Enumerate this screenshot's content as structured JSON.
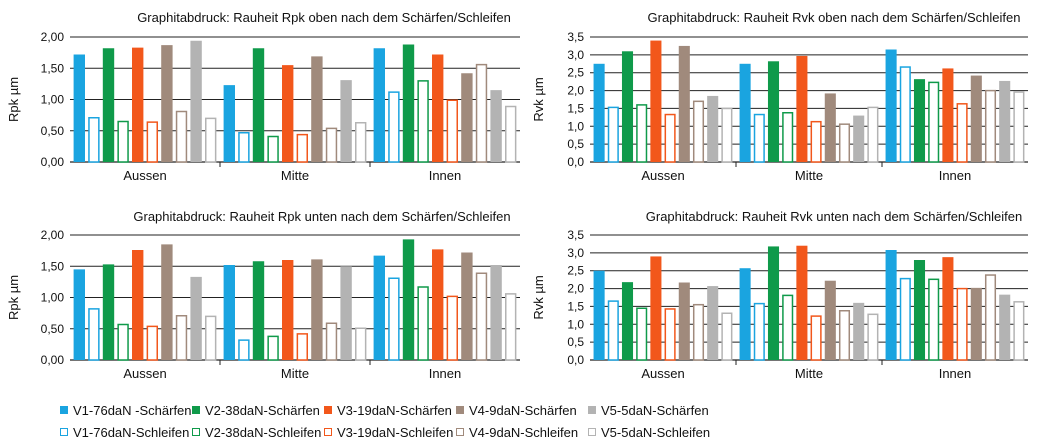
{
  "chart_data": [
    {
      "type": "bar",
      "title": "Graphitabdruck: Rauheit Rpk oben nach dem Schärfen/Schleifen",
      "ylabel": "Rpk µm",
      "ylim": [
        0,
        2.0
      ],
      "yticks": [
        "0,00",
        "0,50",
        "1,00",
        "1,50",
        "2,00"
      ],
      "categories": [
        "Aussen",
        "Mitte",
        "Innen"
      ],
      "series": [
        {
          "name": "V1-76daN -Schärfen",
          "values": [
            1.72,
            1.23,
            1.82
          ]
        },
        {
          "name": "V1-76daN-Schleifen",
          "values": [
            0.72,
            0.48,
            1.13
          ]
        },
        {
          "name": "V2-38daN-Schärfen",
          "values": [
            1.82,
            1.82,
            1.88
          ]
        },
        {
          "name": "V2-38daN-Schleifen",
          "values": [
            0.66,
            0.42,
            1.31
          ]
        },
        {
          "name": "V3-19daN-Schärfen",
          "values": [
            1.83,
            1.55,
            1.72
          ]
        },
        {
          "name": "V3-19daN-Schleifen",
          "values": [
            0.65,
            0.45,
            1.0
          ]
        },
        {
          "name": "V4-9daN-Schärfen",
          "values": [
            1.87,
            1.69,
            1.42
          ]
        },
        {
          "name": "V4-9daN-Schleifen",
          "values": [
            0.82,
            0.55,
            1.57
          ]
        },
        {
          "name": "V5-5daN-Schärfen",
          "values": [
            1.94,
            1.31,
            1.15
          ]
        },
        {
          "name": "V5-5daN-Schleifen",
          "values": [
            0.71,
            0.64,
            0.9
          ]
        }
      ]
    },
    {
      "type": "bar",
      "title": "Graphitabdruck: Rauheit Rvk oben nach dem Schärfen/Schleifen",
      "ylabel": "Rvk µm",
      "ylim": [
        0,
        3.5
      ],
      "yticks": [
        "0,0",
        "0,5",
        "1,0",
        "1,5",
        "2,0",
        "2,5",
        "3,0",
        "3,5"
      ],
      "categories": [
        "Aussen",
        "Mitte",
        "Innen"
      ],
      "series": [
        {
          "name": "V1-76daN -Schärfen",
          "values": [
            2.75,
            2.75,
            3.15
          ]
        },
        {
          "name": "V1-76daN-Schleifen",
          "values": [
            1.55,
            1.35,
            2.68
          ]
        },
        {
          "name": "V2-38daN-Schärfen",
          "values": [
            3.1,
            2.82,
            2.32
          ]
        },
        {
          "name": "V2-38daN-Schleifen",
          "values": [
            1.62,
            1.4,
            2.25
          ]
        },
        {
          "name": "V3-19daN-Schärfen",
          "values": [
            3.4,
            2.97,
            2.62
          ]
        },
        {
          "name": "V3-19daN-Schleifen",
          "values": [
            1.35,
            1.15,
            1.65
          ]
        },
        {
          "name": "V4-9daN-Schärfen",
          "values": [
            3.25,
            1.92,
            2.42
          ]
        },
        {
          "name": "V4-9daN-Schleifen",
          "values": [
            1.72,
            1.08,
            2.02
          ]
        },
        {
          "name": "V5-5daN-Schärfen",
          "values": [
            1.85,
            1.3,
            2.27
          ]
        },
        {
          "name": "V5-5daN-Schleifen",
          "values": [
            1.52,
            1.55,
            1.98
          ]
        }
      ]
    },
    {
      "type": "bar",
      "title": "Graphitabdruck: Rauheit Rpk unten nach dem Schärfen/Schleifen",
      "ylabel": "Rpk µm",
      "ylim": [
        0,
        2.0
      ],
      "yticks": [
        "0,00",
        "0,50",
        "1,00",
        "1,50",
        "2,00"
      ],
      "categories": [
        "Aussen",
        "Mitte",
        "Innen"
      ],
      "series": [
        {
          "name": "V1-76daN -Schärfen",
          "values": [
            1.45,
            1.52,
            1.67
          ]
        },
        {
          "name": "V1-76daN-Schleifen",
          "values": [
            0.83,
            0.33,
            1.32
          ]
        },
        {
          "name": "V2-38daN-Schärfen",
          "values": [
            1.53,
            1.58,
            1.93
          ]
        },
        {
          "name": "V2-38daN-Schleifen",
          "values": [
            0.58,
            0.39,
            1.18
          ]
        },
        {
          "name": "V3-19daN-Schärfen",
          "values": [
            1.76,
            1.6,
            1.77
          ]
        },
        {
          "name": "V3-19daN-Schleifen",
          "values": [
            0.55,
            0.43,
            1.03
          ]
        },
        {
          "name": "V4-9daN-Schärfen",
          "values": [
            1.85,
            1.61,
            1.72
          ]
        },
        {
          "name": "V4-9daN-Schleifen",
          "values": [
            0.72,
            0.6,
            1.4
          ]
        },
        {
          "name": "V5-5daN-Schärfen",
          "values": [
            1.33,
            1.5,
            1.52
          ]
        },
        {
          "name": "V5-5daN-Schleifen",
          "values": [
            0.71,
            0.52,
            1.07
          ]
        }
      ]
    },
    {
      "type": "bar",
      "title": "Graphitabdruck: Rauheit Rvk unten nach dem Schärfen/Schleifen",
      "ylabel": "Rvk µm",
      "ylim": [
        0,
        3.5
      ],
      "yticks": [
        "0,0",
        "0,5",
        "1,0",
        "1,5",
        "2,0",
        "2,5",
        "3,0",
        "3,5"
      ],
      "categories": [
        "Aussen",
        "Mitte",
        "Innen"
      ],
      "series": [
        {
          "name": "V1-76daN -Schärfen",
          "values": [
            2.5,
            2.57,
            3.08
          ]
        },
        {
          "name": "V1-76daN-Schleifen",
          "values": [
            1.67,
            1.6,
            2.3
          ]
        },
        {
          "name": "V2-38daN-Schärfen",
          "values": [
            2.18,
            3.18,
            2.8
          ]
        },
        {
          "name": "V2-38daN-Schleifen",
          "values": [
            1.47,
            1.83,
            2.28
          ]
        },
        {
          "name": "V3-19daN-Schärfen",
          "values": [
            2.9,
            3.2,
            2.88
          ]
        },
        {
          "name": "V3-19daN-Schleifen",
          "values": [
            1.45,
            1.25,
            2.02
          ]
        },
        {
          "name": "V4-9daN-Schärfen",
          "values": [
            2.17,
            2.22,
            2.02
          ]
        },
        {
          "name": "V4-9daN-Schleifen",
          "values": [
            1.57,
            1.4,
            2.4
          ]
        },
        {
          "name": "V5-5daN-Schärfen",
          "values": [
            2.07,
            1.6,
            1.83
          ]
        },
        {
          "name": "V5-5daN-Schleifen",
          "values": [
            1.33,
            1.3,
            1.65
          ]
        }
      ]
    }
  ],
  "legend": [
    {
      "label": "V1-76daN -Schärfen",
      "color": "#1aa4e0",
      "style": "filled"
    },
    {
      "label": "V2-38daN-Schärfen",
      "color": "#0f9a4a",
      "style": "filled"
    },
    {
      "label": "V3-19daN-Schärfen",
      "color": "#f2571b",
      "style": "filled"
    },
    {
      "label": "V4-9daN-Schärfen",
      "color": "#a08a7c",
      "style": "filled"
    },
    {
      "label": "V5-5daN-Schärfen",
      "color": "#b3b3b3",
      "style": "filled"
    },
    {
      "label": "V1-76daN-Schleifen",
      "color": "#1aa4e0",
      "style": "outline"
    },
    {
      "label": "V2-38daN-Schleifen",
      "color": "#0f9a4a",
      "style": "outline"
    },
    {
      "label": "V3-19daN-Schleifen",
      "color": "#f2571b",
      "style": "outline"
    },
    {
      "label": "V4-9daN-Schleifen",
      "color": "#a08a7c",
      "style": "outline"
    },
    {
      "label": "V5-5daN-Schleifen",
      "color": "#b3b3b3",
      "style": "outline"
    }
  ],
  "colors": {
    "v1": "#1aa4e0",
    "v2": "#0f9a4a",
    "v3": "#f2571b",
    "v4": "#a08a7c",
    "v5": "#b3b3b3",
    "gridline": "#222222"
  }
}
